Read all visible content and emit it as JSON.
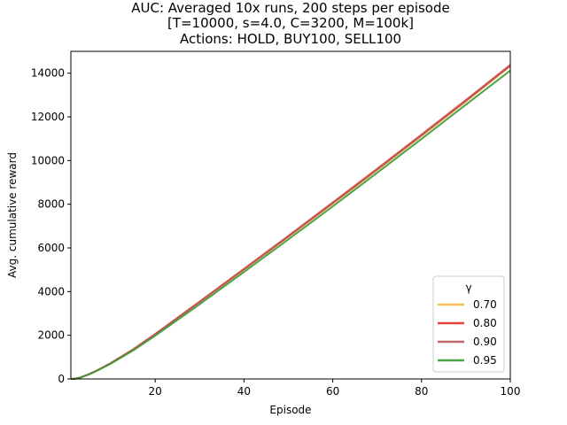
{
  "chart_data": {
    "type": "line",
    "title_lines": [
      "AUC: Averaged 10x runs, 200 steps per episode",
      "[T=10000, s=4.0, C=3200, M=100k]",
      "Actions: HOLD, BUY100, SELL100"
    ],
    "xlabel": "Episode",
    "ylabel": "Avg. cumulative reward",
    "xlim": [
      1,
      100
    ],
    "ylim": [
      0,
      15000
    ],
    "xticks": [
      20,
      40,
      60,
      80,
      100
    ],
    "yticks": [
      0,
      2000,
      4000,
      6000,
      8000,
      10000,
      12000,
      14000
    ],
    "grid": false,
    "legend": {
      "title": "γ",
      "placement": "lower-right"
    },
    "x": [
      1,
      2,
      3,
      5,
      7,
      10,
      15,
      20,
      30,
      40,
      50,
      60,
      70,
      80,
      90,
      100
    ],
    "series": [
      {
        "name": "0.70",
        "color": "#f5b942",
        "values": [
          0,
          10,
          60,
          210,
          400,
          720,
          1340,
          2040,
          3510,
          5000,
          6500,
          8020,
          9560,
          11120,
          12700,
          14320
        ]
      },
      {
        "name": "0.80",
        "color": "#e8302a",
        "values": [
          0,
          10,
          60,
          210,
          400,
          730,
          1350,
          2060,
          3540,
          5040,
          6550,
          8080,
          9620,
          11190,
          12770,
          14380
        ]
      },
      {
        "name": "0.90",
        "color": "#b85a5a",
        "values": [
          0,
          10,
          60,
          210,
          400,
          725,
          1345,
          2050,
          3525,
          5020,
          6525,
          8050,
          9590,
          11155,
          12735,
          14350
        ]
      },
      {
        "name": "0.95",
        "color": "#3a9a34",
        "values": [
          0,
          10,
          55,
          200,
          385,
          700,
          1300,
          1980,
          3420,
          4900,
          6390,
          7900,
          9440,
          10990,
          12560,
          14120
        ]
      }
    ]
  }
}
